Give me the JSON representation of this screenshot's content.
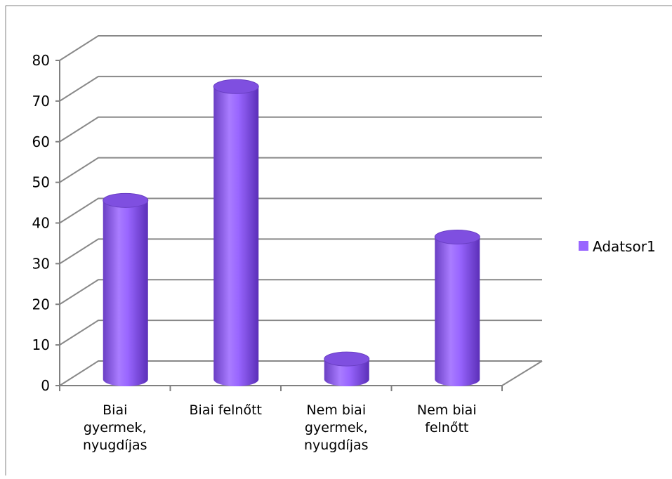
{
  "chart_data": {
    "type": "bar",
    "style": "3d-cylinder",
    "categories": [
      [
        "Biai",
        "gyermek,",
        "nyugdíjas"
      ],
      [
        "Biai felnőtt"
      ],
      [
        "Nem biai",
        "gyermek,",
        "nyugdíjas"
      ],
      [
        "Nem biai",
        "felnőtt"
      ]
    ],
    "series": [
      {
        "name": "Adatsor1",
        "values": [
          44,
          72,
          5,
          35
        ],
        "color": "#9966FF"
      }
    ],
    "ylim": [
      0,
      80
    ],
    "yticks": [
      0,
      10,
      20,
      30,
      40,
      50,
      60,
      70,
      80
    ],
    "grid": true,
    "legend": "right"
  }
}
